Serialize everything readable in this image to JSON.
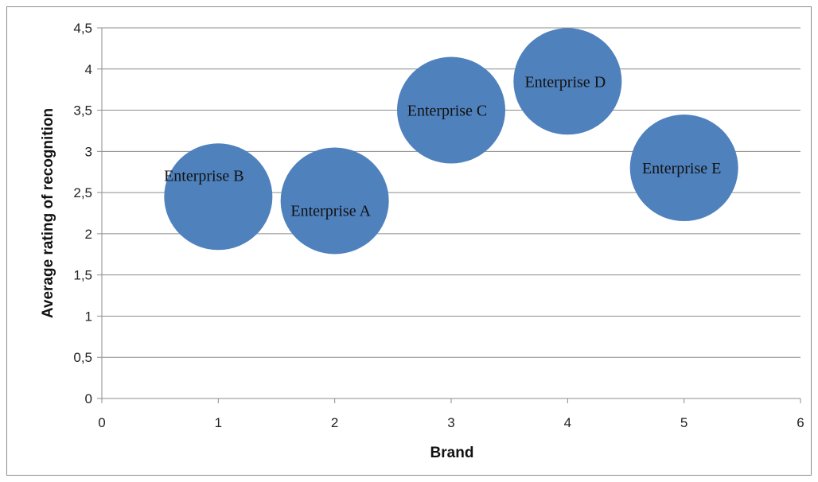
{
  "chart_data": {
    "type": "bubble",
    "title": "",
    "xlabel": "Brand",
    "ylabel": "Average rating of recognition",
    "xlim": [
      0,
      6
    ],
    "ylim": [
      0,
      4.5
    ],
    "x_ticks": [
      "0",
      "1",
      "2",
      "3",
      "4",
      "5",
      "6"
    ],
    "y_ticks": [
      "0",
      "0,5",
      "1",
      "1,5",
      "2",
      "2,5",
      "3",
      "3,5",
      "4",
      "4,5"
    ],
    "grid": "horizontal",
    "legend": "none",
    "bubble_color": "#4f81bd",
    "points": [
      {
        "label": "Enterprise B",
        "x": 1,
        "y": 2.45
      },
      {
        "label": "Enterprise A",
        "x": 2,
        "y": 2.4
      },
      {
        "label": "Enterprise C",
        "x": 3,
        "y": 3.5
      },
      {
        "label": "Enterprise D",
        "x": 4,
        "y": 3.85
      },
      {
        "label": "Enterprise E",
        "x": 5,
        "y": 2.8
      }
    ]
  }
}
